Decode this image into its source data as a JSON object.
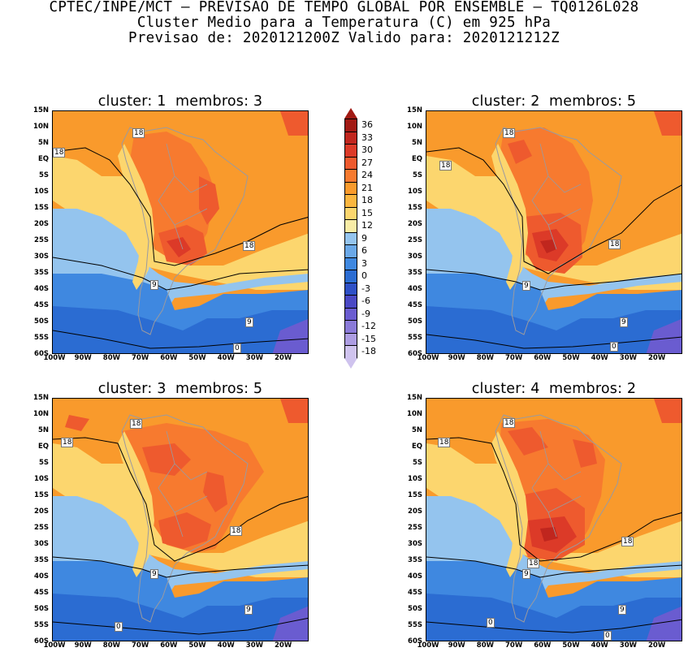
{
  "header": {
    "line1": "CPTEC/INPE/MCT – PREVISAO DE TEMPO GLOBAL POR ENSEMBLE – TQ0126L028",
    "line2": "Cluster Medio para a Temperatura (C) em 925 hPa",
    "line3": "Previsao de: 2020121200Z   Valido para: 2020121212Z"
  },
  "panels": [
    {
      "title": "cluster: 1  membros: 3",
      "contour_labels": [
        "18",
        "18",
        "18",
        "9",
        "9",
        "0"
      ]
    },
    {
      "title": "cluster: 2  membros: 5",
      "contour_labels": [
        "18",
        "18",
        "18",
        "9",
        "9",
        "0"
      ]
    },
    {
      "title": "cluster: 3  membros: 5",
      "contour_labels": [
        "18",
        "18",
        "18",
        "9",
        "9",
        "0"
      ]
    },
    {
      "title": "cluster: 4  membros: 2",
      "contour_labels": [
        "18",
        "18",
        "18",
        "18",
        "9",
        "9",
        "0",
        "0"
      ]
    }
  ],
  "y_ticks": [
    "15N",
    "10N",
    "5N",
    "EQ",
    "5S",
    "10S",
    "15S",
    "20S",
    "25S",
    "30S",
    "35S",
    "40S",
    "45S",
    "50S",
    "55S",
    "60S"
  ],
  "x_ticks": [
    "100W",
    "90W",
    "80W",
    "70W",
    "60W",
    "50W",
    "40W",
    "30W",
    "20W"
  ],
  "colorbar": {
    "labels": [
      "36",
      "33",
      "30",
      "27",
      "24",
      "21",
      "18",
      "15",
      "12",
      "9",
      "6",
      "3",
      "0",
      "-3",
      "-6",
      "-9",
      "-12",
      "-15",
      "-18"
    ],
    "colors": [
      "#a11a14",
      "#c0261e",
      "#dc3a28",
      "#ee5a2e",
      "#f77a2f",
      "#f99a2c",
      "#fbb63f",
      "#fcd66e",
      "#f8eca6",
      "#94c4ee",
      "#6aa8e8",
      "#3f88e0",
      "#2b6cd2",
      "#2e50c6",
      "#4a48c4",
      "#6a5cd0",
      "#8a7ad8",
      "#ad9de2",
      "#cfc3ee"
    ]
  }
}
